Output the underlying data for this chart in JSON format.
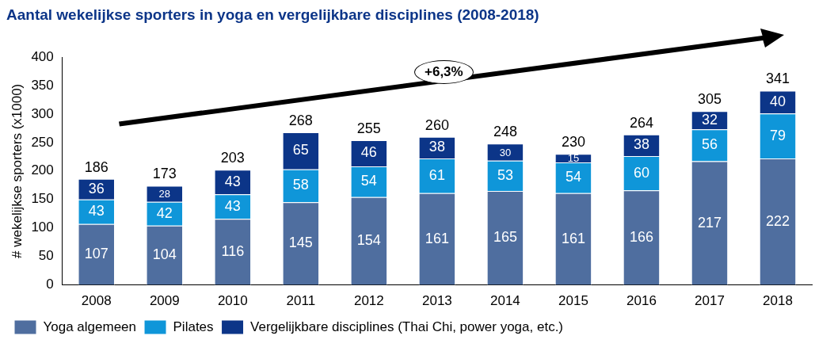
{
  "chart_data": {
    "type": "bar",
    "title": "Aantal wekelijkse sporters in yoga en vergelijkbare disciplines (2008-2018)",
    "ylabel": "# wekelijkse sporters (x1000)",
    "categories": [
      "2008",
      "2009",
      "2010",
      "2011",
      "2012",
      "2013",
      "2014",
      "2015",
      "2016",
      "2017",
      "2018"
    ],
    "series": [
      {
        "name": "Yoga algemeen",
        "color": "#4f6e9f",
        "values": [
          107,
          104,
          116,
          145,
          154,
          161,
          165,
          161,
          166,
          217,
          222
        ]
      },
      {
        "name": "Pilates",
        "color": "#0f96d9",
        "values": [
          43,
          42,
          43,
          58,
          54,
          61,
          53,
          54,
          60,
          56,
          79
        ]
      },
      {
        "name": "Vergelijkbare disciplines (Thai Chi, power yoga, etc.)",
        "color": "#0c3588",
        "values": [
          36,
          28,
          43,
          65,
          46,
          38,
          30,
          15,
          38,
          32,
          40
        ]
      }
    ],
    "stacked": true,
    "data_labels": true,
    "totals": [
      "186",
      "173",
      "203",
      "268",
      "255",
      "260",
      "248",
      "230",
      "264",
      "305",
      "341"
    ],
    "ylim": [
      0,
      400
    ],
    "yticks": [
      0,
      50,
      100,
      150,
      200,
      250,
      300,
      350,
      400
    ],
    "grid": false,
    "legend": "bottom",
    "annotations": [
      "+6,3%"
    ]
  }
}
